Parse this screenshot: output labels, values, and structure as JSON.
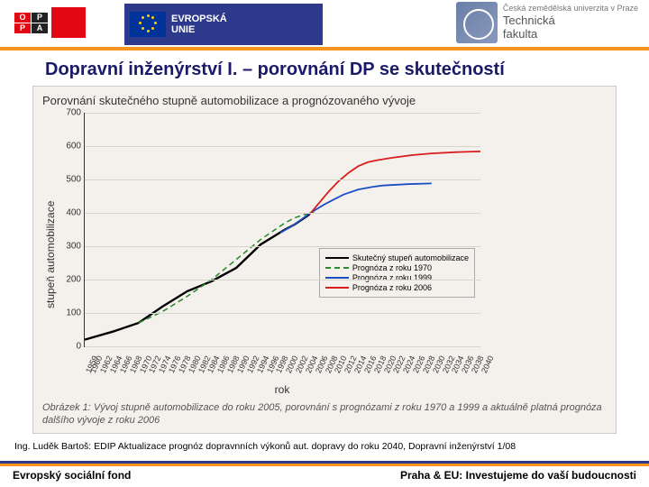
{
  "header": {
    "eu_label_line1": "EVROPSKÁ",
    "eu_label_line2": "UNIE",
    "right_top": "Česká zemědělská univerzita v Praze",
    "right_main": "Technická",
    "right_sub": "fakulta"
  },
  "title": "Dopravní inženýrství I.  –  porovnání DP se skutečností",
  "chart": {
    "type": "line",
    "title": "Porovnání skutečného stupně automobilizace a prognózovaného vývoje",
    "ylabel": "stupeň automobilizace",
    "xlabel": "rok",
    "ylim": [
      0,
      700
    ],
    "yticks": [
      0,
      100,
      200,
      300,
      400,
      500,
      600,
      700
    ],
    "xlim": [
      1959,
      2040
    ],
    "xticks": [
      1959,
      1960,
      1962,
      1964,
      1966,
      1968,
      1970,
      1972,
      1974,
      1976,
      1978,
      1980,
      1982,
      1984,
      1986,
      1988,
      1990,
      1992,
      1994,
      1996,
      1998,
      2000,
      2002,
      2004,
      2006,
      2008,
      2010,
      2012,
      2014,
      2016,
      2018,
      2020,
      2022,
      2024,
      2026,
      2028,
      2030,
      2032,
      2034,
      2036,
      2038,
      2040
    ],
    "background_color": "#f4f1ec",
    "grid_color": "#d8d4cc",
    "series": [
      {
        "name": "Skutečný stupeň automobilizace",
        "color": "#000000",
        "dash": "solid",
        "width": 2.4,
        "points": [
          [
            1959,
            20
          ],
          [
            1965,
            45
          ],
          [
            1970,
            70
          ],
          [
            1975,
            120
          ],
          [
            1980,
            165
          ],
          [
            1985,
            195
          ],
          [
            1990,
            235
          ],
          [
            1995,
            305
          ],
          [
            2000,
            350
          ],
          [
            2002,
            365
          ],
          [
            2005,
            395
          ]
        ]
      },
      {
        "name": "Prognóza z roku 1970",
        "color": "#2e8b2e",
        "dash": "dashed",
        "width": 1.6,
        "points": [
          [
            1970,
            70
          ],
          [
            1975,
            105
          ],
          [
            1980,
            150
          ],
          [
            1985,
            200
          ],
          [
            1990,
            260
          ],
          [
            1995,
            320
          ],
          [
            2000,
            370
          ],
          [
            2002,
            385
          ],
          [
            2004,
            395
          ],
          [
            2006,
            400
          ]
        ]
      },
      {
        "name": "Prognóza z roku 1999",
        "color": "#1a4fc4",
        "dash": "solid",
        "width": 1.8,
        "points": [
          [
            1999,
            340
          ],
          [
            2002,
            365
          ],
          [
            2005,
            398
          ],
          [
            2008,
            425
          ],
          [
            2010,
            440
          ],
          [
            2012,
            455
          ],
          [
            2015,
            470
          ],
          [
            2018,
            478
          ],
          [
            2020,
            482
          ],
          [
            2025,
            486
          ],
          [
            2030,
            488
          ]
        ]
      },
      {
        "name": "Prognóza z roku 2006",
        "color": "#d81e1e",
        "dash": "solid",
        "width": 1.8,
        "points": [
          [
            2005,
            395
          ],
          [
            2007,
            430
          ],
          [
            2009,
            465
          ],
          [
            2011,
            495
          ],
          [
            2013,
            520
          ],
          [
            2015,
            540
          ],
          [
            2017,
            552
          ],
          [
            2019,
            558
          ],
          [
            2022,
            565
          ],
          [
            2026,
            573
          ],
          [
            2030,
            578
          ],
          [
            2035,
            582
          ],
          [
            2040,
            584
          ]
        ]
      }
    ],
    "legend_title": "",
    "caption": "Obrázek 1: Vývoj stupně automobilizace do roku 2005, porovnání s prognózami z roku 1970 a 1999 a aktuálně platná prognóza dalšího vývoje z roku 2006"
  },
  "source": "Ing. Luděk Bartoš: EDIP Aktualizace prognóz dopravnních výkonů aut. dopravy do roku 2040, Dopravní inženýrství 1/08",
  "footer": {
    "left": "Evropský sociální fond",
    "right": "Praha & EU: Investujeme do vaší budoucnosti"
  }
}
